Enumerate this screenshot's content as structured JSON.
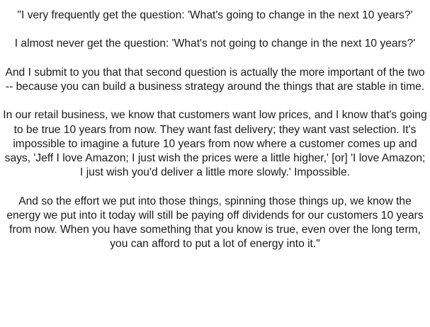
{
  "quote": {
    "paragraphs": [
      "\"I very frequently get the question: 'What's going to change in the next 10 years?'",
      "I almost never get the question: 'What's not going to change in the next 10 years?'",
      "And I submit to you that that second question is actually the more important of the two -- because you can build a business strategy around the things that are stable in time.",
      "In our retail business, we know that customers want low prices, and I know that's going to be true 10 years from now. They want fast delivery; they want vast selection. It's impossible to imagine a future 10 years from now where a customer comes up and says, 'Jeff I love Amazon; I just wish the prices were a little higher,' [or] 'I love Amazon; I just wish you'd deliver a little more slowly.' Impossible.",
      "And so the effort we put into those things, spinning those things up, we know the energy we put into it today will still be paying off dividends for our customers 10 years from now. When you have something that you know is true, even over the long term, you can afford to put a lot of energy into it.\""
    ]
  }
}
